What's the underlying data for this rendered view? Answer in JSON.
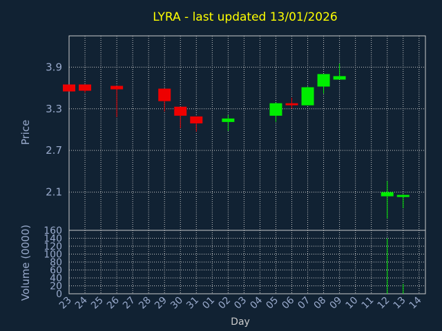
{
  "chart_data": {
    "type": "candlestick",
    "title": "LYRA - last updated 13/01/2026",
    "xlabel": "Day",
    "price_panel": {
      "ylabel": "Price",
      "yticks": [
        2.1,
        2.7,
        3.3,
        3.9
      ],
      "ylim": [
        1.55,
        4.35
      ]
    },
    "volume_panel": {
      "ylabel": "Volume (0000)",
      "yticks": [
        0,
        20,
        40,
        60,
        80,
        100,
        120,
        140,
        160
      ],
      "ylim": [
        0,
        160
      ]
    },
    "x_tick_labels": [
      "23",
      "24",
      "25",
      "26",
      "27",
      "28",
      "29",
      "30",
      "31",
      "01",
      "02",
      "03",
      "04",
      "05",
      "06",
      "07",
      "08",
      "09",
      "10",
      "11",
      "12",
      "13",
      "14"
    ],
    "candles": [
      {
        "day": "23",
        "open": 3.65,
        "high": 3.65,
        "low": 3.55,
        "close": 3.55,
        "volume": 0
      },
      {
        "day": "24",
        "open": 3.65,
        "high": 3.65,
        "low": 3.53,
        "close": 3.56,
        "volume": 0
      },
      {
        "day": "26",
        "open": 3.63,
        "high": 3.63,
        "low": 3.18,
        "close": 3.58,
        "volume": 0
      },
      {
        "day": "29",
        "open": 3.59,
        "high": 3.59,
        "low": 3.26,
        "close": 3.41,
        "volume": 0
      },
      {
        "day": "30",
        "open": 3.33,
        "high": 3.33,
        "low": 3.02,
        "close": 3.2,
        "volume": 0
      },
      {
        "day": "31",
        "open": 3.19,
        "high": 3.19,
        "low": 2.97,
        "close": 3.09,
        "volume": 0
      },
      {
        "day": "02",
        "open": 3.11,
        "high": 3.21,
        "low": 2.98,
        "close": 3.16,
        "volume": 0
      },
      {
        "day": "05",
        "open": 3.2,
        "high": 3.39,
        "low": 3.11,
        "close": 3.38,
        "volume": 0
      },
      {
        "day": "06",
        "open": 3.38,
        "high": 3.46,
        "low": 3.3,
        "close": 3.36,
        "volume": 0
      },
      {
        "day": "07",
        "open": 3.35,
        "high": 3.62,
        "low": 3.35,
        "close": 3.61,
        "volume": 0
      },
      {
        "day": "08",
        "open": 3.62,
        "high": 3.8,
        "low": 3.52,
        "close": 3.8,
        "volume": 0
      },
      {
        "day": "09",
        "open": 3.72,
        "high": 3.95,
        "low": 3.72,
        "close": 3.77,
        "volume": 0
      },
      {
        "day": "12",
        "open": 2.04,
        "high": 2.26,
        "low": 1.72,
        "close": 2.1,
        "volume": 140
      },
      {
        "day": "13",
        "open": 2.03,
        "high": 2.07,
        "low": 1.87,
        "close": 2.06,
        "volume": 25
      }
    ],
    "colors": {
      "up": "#00ee00",
      "down": "#ee0000",
      "background": "#112233",
      "grid": "#cccccc",
      "title": "#ffff00",
      "axis_text": "#99aacc"
    }
  }
}
